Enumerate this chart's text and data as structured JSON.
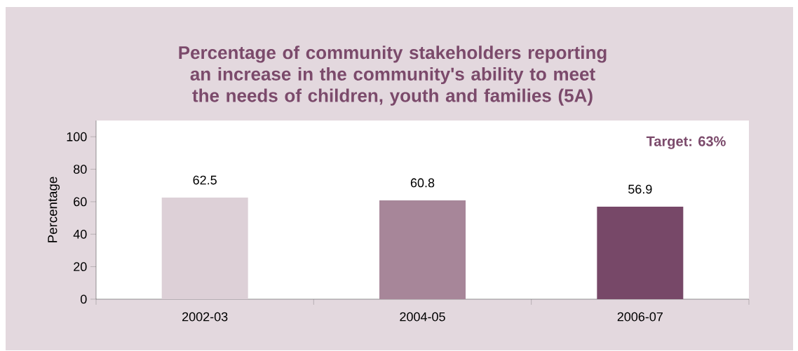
{
  "chart_data": {
    "type": "bar",
    "title": "Percentage of community stakeholders reporting an increase in the community's ability to meet the needs of children, youth and families (5A)",
    "ylabel": "Percentage",
    "categories": [
      "2002-03",
      "2004-05",
      "2006-07"
    ],
    "values": [
      62.5,
      60.8,
      56.9
    ],
    "colors": [
      "#ddd0d7",
      "#a78699",
      "#774868"
    ],
    "ylim": [
      0,
      110
    ],
    "yticks": [
      0,
      20,
      40,
      60,
      80,
      100
    ],
    "data_labels": true,
    "annotations": [
      "Target: 63%"
    ]
  }
}
